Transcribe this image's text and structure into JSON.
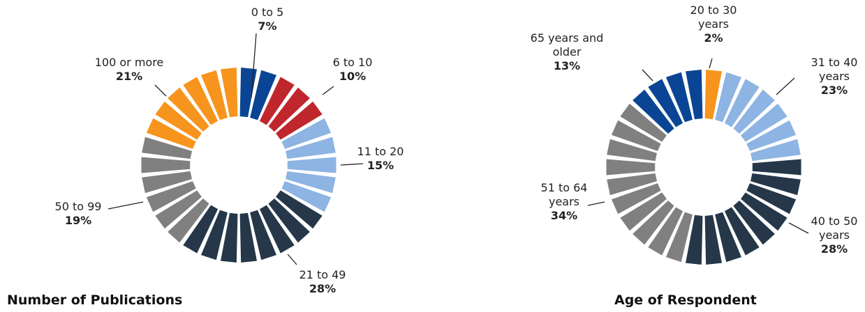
{
  "chart_data": [
    {
      "type": "donut",
      "title": "Number of Publications",
      "categories": [
        "0 to 5",
        "6 to 10",
        "11 to 20",
        "21 to 49",
        "50 to 99",
        "100 or more"
      ],
      "values": [
        7,
        10,
        15,
        28,
        19,
        21
      ],
      "value_labels": [
        "7%",
        "10%",
        "15%",
        "28%",
        "19%",
        "21%"
      ],
      "colors": [
        "#0a4595",
        "#c0272d",
        "#8db4e2",
        "#253749",
        "#808080",
        "#f7941d"
      ]
    },
    {
      "type": "donut",
      "title": "Age of Respondent",
      "categories": [
        "20 to 30 years",
        "31 to 40 years",
        "40 to 50 years",
        "51 to 64 years",
        "65 years and older"
      ],
      "values": [
        2,
        23,
        28,
        34,
        13
      ],
      "value_labels": [
        "2%",
        "23%",
        "28%",
        "34%",
        "13%"
      ],
      "colors": [
        "#f7941d",
        "#8db4e2",
        "#253749",
        "#808080",
        "#0a4595"
      ]
    }
  ]
}
